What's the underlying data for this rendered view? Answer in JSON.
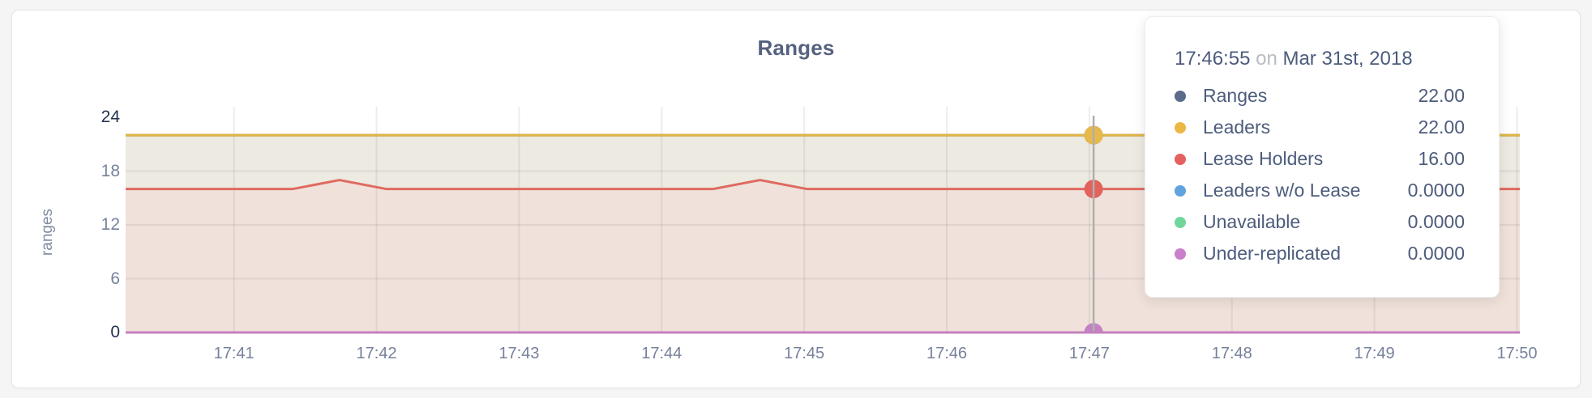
{
  "page": {
    "background": "#F5F5F6"
  },
  "chart_data": {
    "type": "area",
    "title": "Ranges",
    "ylabel": "ranges",
    "xlabel": "",
    "ylim": [
      0,
      24
    ],
    "grid": true,
    "x_domain_minutes": [
      40.24,
      50.02
    ],
    "x_ticks": [
      {
        "label": "17:41",
        "minute": 41
      },
      {
        "label": "17:42",
        "minute": 42
      },
      {
        "label": "17:43",
        "minute": 43
      },
      {
        "label": "17:44",
        "minute": 44
      },
      {
        "label": "17:45",
        "minute": 45
      },
      {
        "label": "17:46",
        "minute": 46
      },
      {
        "label": "17:47",
        "minute": 47
      },
      {
        "label": "17:48",
        "minute": 48
      },
      {
        "label": "17:49",
        "minute": 49
      },
      {
        "label": "17:50",
        "minute": 50
      }
    ],
    "y_ticks": [
      {
        "label": "0",
        "value": 0,
        "emphasis": true
      },
      {
        "label": "6",
        "value": 6,
        "emphasis": false
      },
      {
        "label": "12",
        "value": 12,
        "emphasis": false
      },
      {
        "label": "18",
        "value": 18,
        "emphasis": false
      },
      {
        "label": "24",
        "value": 24,
        "emphasis": true
      }
    ],
    "y_grid_values": [
      6,
      12,
      18
    ],
    "axis_colors": {
      "dark": "#26324E",
      "light": "#76819B",
      "grid": "rgba(80,80,80,0.10)"
    },
    "series": [
      {
        "name": "Ranges",
        "color": "#54678D",
        "fill": "none",
        "points": [
          [
            40.24,
            22
          ],
          [
            50.02,
            22
          ]
        ]
      },
      {
        "name": "Leaders",
        "color": "#E1B545",
        "fill": "#ECEAE1",
        "points": [
          [
            40.24,
            22
          ],
          [
            50.02,
            22
          ]
        ]
      },
      {
        "name": "Lease Holders",
        "color": "#DF6A60",
        "fill": "#F1E1DB",
        "points": [
          [
            40.24,
            16
          ],
          [
            41.41,
            16
          ],
          [
            41.74,
            17
          ],
          [
            42.07,
            16
          ],
          [
            44.36,
            16
          ],
          [
            44.69,
            17
          ],
          [
            45.02,
            16
          ],
          [
            50.02,
            16
          ]
        ]
      },
      {
        "name": "Leaders w/o Lease",
        "color": "#64A5DE",
        "fill": "none",
        "points": [
          [
            40.24,
            0
          ],
          [
            50.02,
            0
          ]
        ]
      },
      {
        "name": "Unavailable",
        "color": "#70D79B",
        "fill": "none",
        "points": [
          [
            40.24,
            0
          ],
          [
            50.02,
            0
          ]
        ]
      },
      {
        "name": "Under-replicated",
        "color": "#C481BE",
        "fill": "none",
        "points": [
          [
            40.24,
            0
          ],
          [
            50.02,
            0
          ]
        ]
      }
    ],
    "hover": {
      "minute": 47.03,
      "line_color": "#AFAFAF",
      "dots": [
        {
          "series": "Ranges",
          "color": "#54678D",
          "value": 22
        },
        {
          "series": "Leaders",
          "color": "#E8B84B",
          "value": 22
        },
        {
          "series": "Lease Holders",
          "color": "#E2625C",
          "value": 16
        },
        {
          "series": "Leaders w/o Lease",
          "color": "#64A5DE",
          "value": 0
        },
        {
          "series": "Unavailable",
          "color": "#70D79B",
          "value": 0
        },
        {
          "series": "Under-replicated",
          "color": "#C481C4",
          "value": 0
        }
      ]
    }
  },
  "tooltip": {
    "time": "17:46:55",
    "connector": "on",
    "date": "Mar 31st, 2018",
    "rows": [
      {
        "label": "Ranges",
        "value": "22.00",
        "dot_color": "#5A6C8A"
      },
      {
        "label": "Leaders",
        "value": "22.00",
        "dot_color": "#EBB844"
      },
      {
        "label": "Lease Holders",
        "value": "16.00",
        "dot_color": "#E4625E"
      },
      {
        "label": "Leaders w/o Lease",
        "value": "0.0000",
        "dot_color": "#61A3DF"
      },
      {
        "label": "Unavailable",
        "value": "0.0000",
        "dot_color": "#72D69C"
      },
      {
        "label": "Under-replicated",
        "value": "0.0000",
        "dot_color": "#CA80CA"
      }
    ]
  }
}
